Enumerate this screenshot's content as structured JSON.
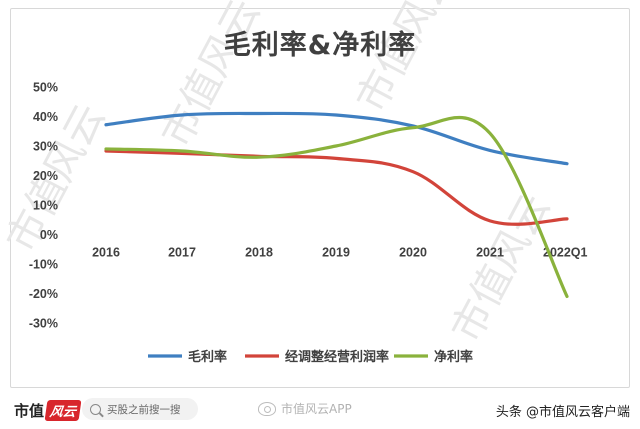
{
  "chart_data": {
    "type": "line",
    "title": "毛利率&净利率",
    "categories": [
      "2016",
      "2017",
      "2018",
      "2019",
      "2020",
      "2021",
      "2022Q1"
    ],
    "y_tick_labels": [
      "50%",
      "40%",
      "30%",
      "20%",
      "10%",
      "0%",
      "-10%",
      "-20%",
      "-30%"
    ],
    "ylim": [
      -30,
      50
    ],
    "y_unit": "%",
    "grid": false,
    "legend_position": "bottom",
    "series": [
      {
        "name": "毛利率",
        "color": "#3f7fc1",
        "values": [
          37.2,
          40.5,
          41.0,
          40.5,
          36.8,
          28.5,
          24.0
        ]
      },
      {
        "name": "经调整经营利润率",
        "color": "#d2443a",
        "values": [
          28.3,
          27.5,
          26.5,
          25.8,
          21.3,
          4.6,
          5.3
        ]
      },
      {
        "name": "净利率",
        "color": "#8ab23c",
        "values": [
          29.0,
          28.3,
          26.2,
          30.0,
          36.2,
          34.3,
          -21.0
        ]
      }
    ]
  },
  "watermark": {
    "text_1": "市值风云",
    "text_2": "市值风云",
    "text_3": "市值风云",
    "text_4": "市值风云"
  },
  "footer": {
    "logo_text": "市值",
    "logo_badge": "风云",
    "search_placeholder": "买股之前搜一搜",
    "app_name": "市值风云APP",
    "source_credit": "头条 @市值风云客户端"
  }
}
